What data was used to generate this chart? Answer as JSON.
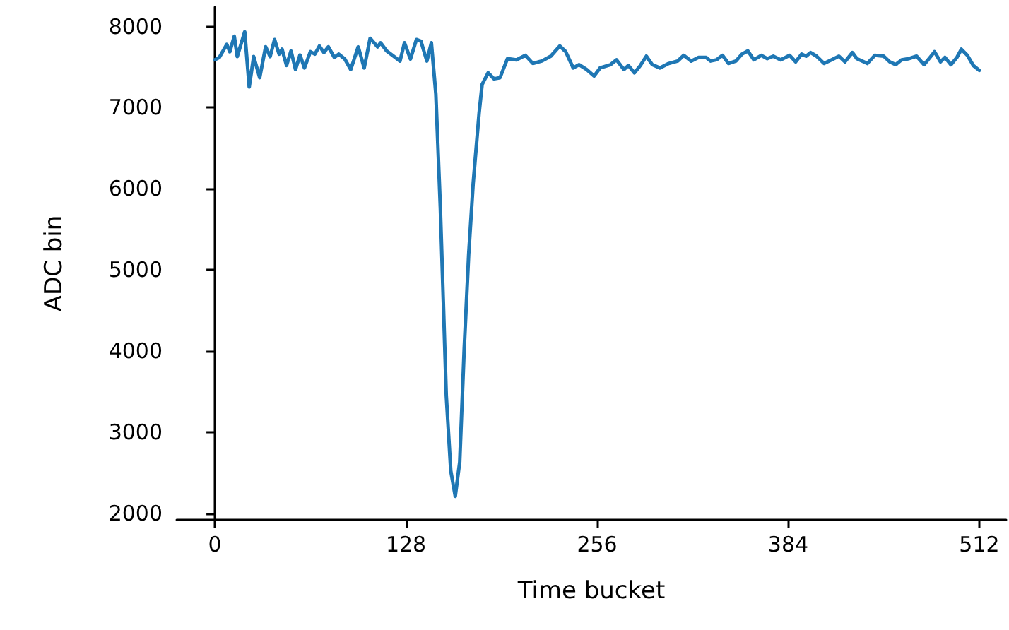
{
  "chart_data": {
    "type": "line",
    "xlabel": "Time bucket",
    "ylabel": "ADC bin",
    "xlim": [
      -25.6,
      530
    ],
    "ylim": [
      1920,
      8240
    ],
    "xticks": [
      0,
      128,
      256,
      384,
      512
    ],
    "yticks": [
      2000,
      3000,
      4000,
      5000,
      6000,
      7000,
      8000
    ],
    "marker": "none",
    "line_style": "solid",
    "series": [
      {
        "color": "#1f77b4",
        "x": [
          0,
          3,
          8,
          10,
          13,
          15,
          20,
          23,
          26,
          30,
          34,
          37,
          40,
          43,
          45,
          48,
          51,
          54,
          57,
          60,
          64,
          67,
          70,
          73,
          76,
          80,
          83,
          87,
          91,
          96,
          100,
          104,
          109,
          111,
          115,
          120,
          124,
          127,
          131,
          135,
          138,
          142,
          145,
          148,
          151,
          153,
          155,
          158,
          161,
          164,
          167,
          170,
          173,
          177,
          179,
          183,
          187,
          191,
          196,
          202,
          208,
          213,
          219,
          225,
          231,
          235,
          240,
          244,
          249,
          254,
          258,
          265,
          269,
          274,
          277,
          281,
          285,
          289,
          293,
          298,
          304,
          310,
          314,
          319,
          324,
          329,
          332,
          336,
          340,
          344,
          349,
          353,
          357,
          361,
          366,
          370,
          374,
          379,
          385,
          389,
          393,
          396,
          399,
          403,
          408,
          413,
          418,
          422,
          427,
          430,
          437,
          442,
          448,
          452,
          456,
          460,
          465,
          470,
          475,
          479,
          482,
          486,
          489,
          493,
          497,
          500,
          504,
          508,
          512
        ],
        "values": [
          7590,
          7620,
          7780,
          7690,
          7880,
          7630,
          7935,
          7255,
          7630,
          7370,
          7750,
          7630,
          7840,
          7660,
          7720,
          7520,
          7700,
          7470,
          7650,
          7490,
          7690,
          7660,
          7760,
          7680,
          7750,
          7620,
          7660,
          7600,
          7470,
          7750,
          7490,
          7855,
          7750,
          7800,
          7700,
          7630,
          7575,
          7800,
          7600,
          7840,
          7820,
          7575,
          7800,
          7170,
          5773,
          4617,
          3448,
          2524,
          2210,
          2634,
          4030,
          5192,
          6064,
          6936,
          7285,
          7430,
          7355,
          7370,
          7605,
          7590,
          7645,
          7545,
          7575,
          7635,
          7760,
          7690,
          7490,
          7530,
          7470,
          7390,
          7490,
          7530,
          7590,
          7470,
          7520,
          7430,
          7520,
          7635,
          7530,
          7490,
          7545,
          7575,
          7645,
          7575,
          7620,
          7620,
          7575,
          7590,
          7645,
          7545,
          7575,
          7660,
          7700,
          7590,
          7645,
          7605,
          7635,
          7590,
          7645,
          7565,
          7660,
          7635,
          7680,
          7635,
          7545,
          7590,
          7635,
          7565,
          7680,
          7605,
          7545,
          7645,
          7635,
          7565,
          7530,
          7590,
          7605,
          7635,
          7530,
          7620,
          7690,
          7565,
          7620,
          7530,
          7620,
          7720,
          7645,
          7520,
          7460
        ]
      }
    ]
  }
}
